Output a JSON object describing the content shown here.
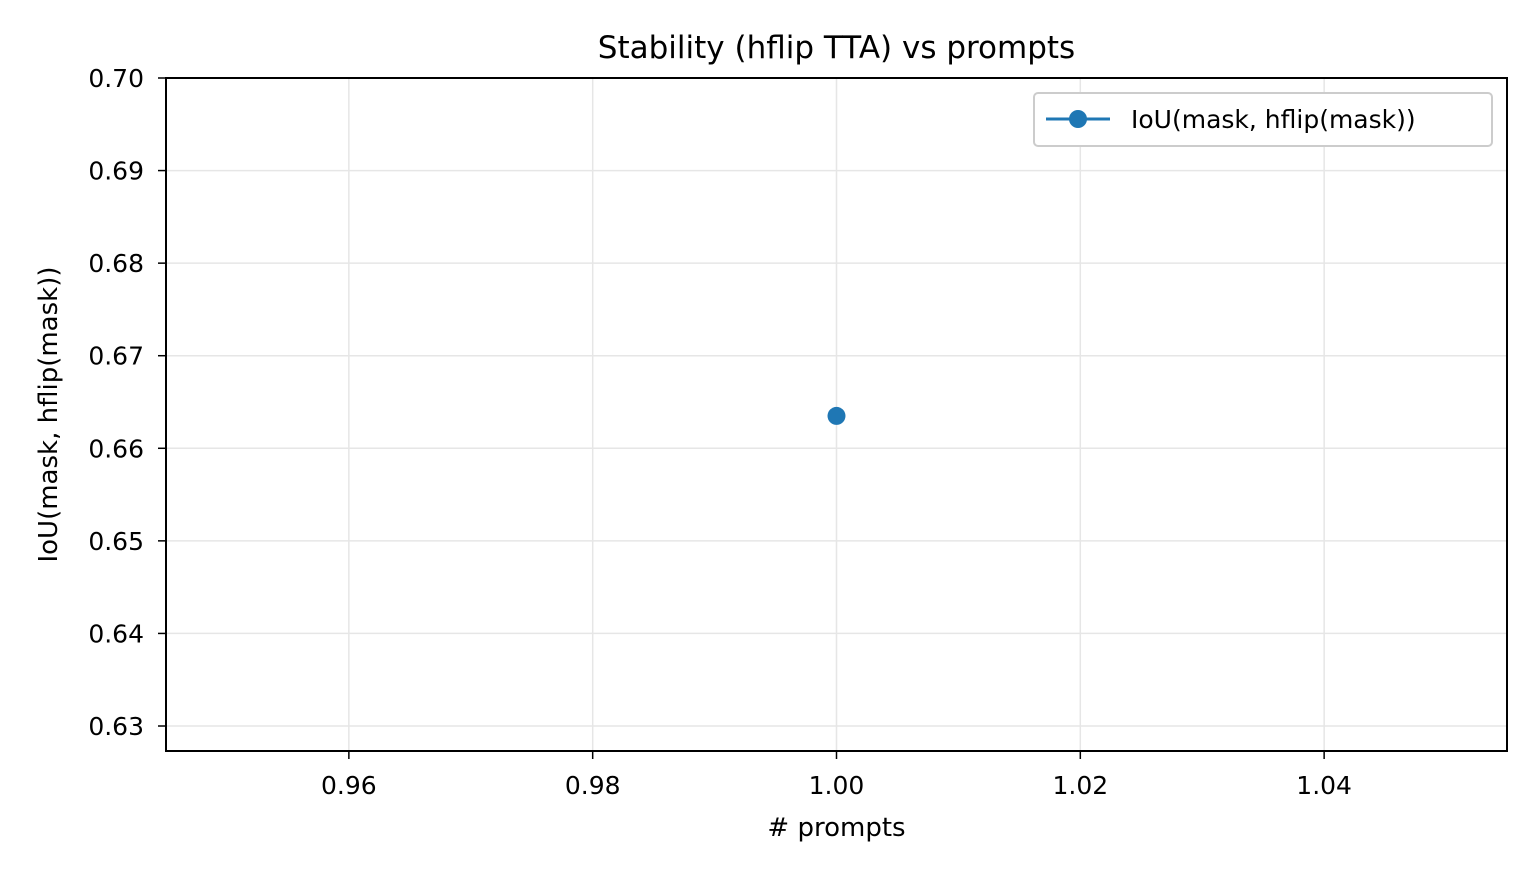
{
  "chart_data": {
    "type": "line",
    "title": "Stability (hflip TTA) vs prompts",
    "xlabel": "# prompts",
    "ylabel": "IoU(mask, hflip(mask))",
    "xlim": [
      0.945,
      1.055
    ],
    "ylim": [
      0.6273,
      0.7
    ],
    "xticks": [
      0.96,
      0.98,
      1.0,
      1.02,
      1.04
    ],
    "xtick_labels": [
      "0.96",
      "0.98",
      "1.00",
      "1.02",
      "1.04"
    ],
    "yticks": [
      0.63,
      0.64,
      0.65,
      0.66,
      0.67,
      0.68,
      0.69,
      0.7
    ],
    "ytick_labels": [
      "0.63",
      "0.64",
      "0.65",
      "0.66",
      "0.67",
      "0.68",
      "0.69",
      "0.70"
    ],
    "grid": true,
    "legend_position": "top-right",
    "series": [
      {
        "name": "IoU(mask, hflip(mask))",
        "color": "#1f77b4",
        "marker": "circle",
        "x": [
          1.0
        ],
        "y": [
          0.6635
        ]
      }
    ]
  }
}
